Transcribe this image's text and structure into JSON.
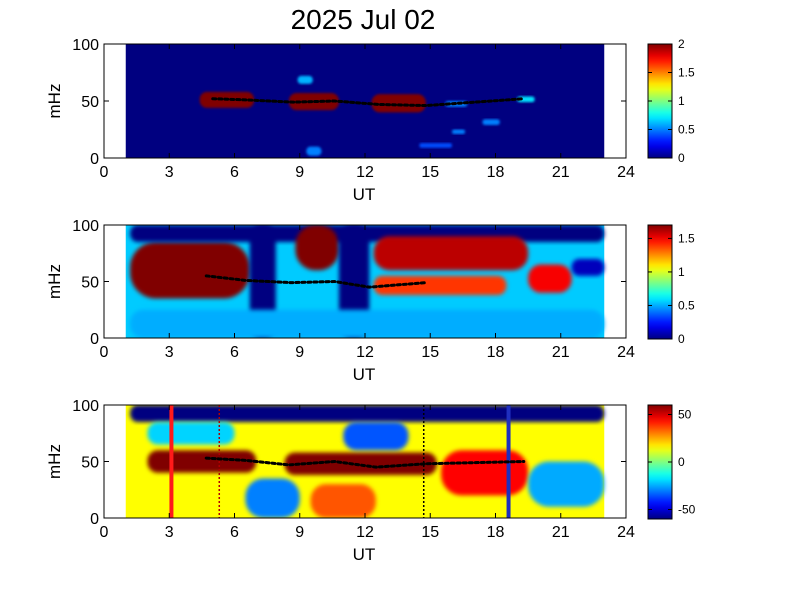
{
  "chart_data": {
    "title": "2025 Jul 02",
    "panels": [
      {
        "type": "heatmap",
        "id": "power",
        "xlabel": "UT",
        "ylabel": "mHz",
        "xlim": [
          0,
          24
        ],
        "ylim": [
          0,
          100
        ],
        "x_ticks": [
          "0",
          "3",
          "6",
          "9",
          "12",
          "15",
          "18",
          "21",
          "24"
        ],
        "y_ticks": [
          "0",
          "50",
          "100"
        ],
        "data_range_ut": [
          1,
          23
        ],
        "colorbar": {
          "min": 0,
          "max": 2,
          "ticks": [
            "0",
            "0.5",
            "1",
            "1.5",
            "2"
          ],
          "colormap": "jet"
        },
        "background_level": 0.0,
        "features": [
          {
            "ut": [
              4.4,
              6.9
            ],
            "mhz": [
              44,
              58
            ],
            "level": 2.0
          },
          {
            "ut": [
              8.5,
              10.8
            ],
            "mhz": [
              42,
              57
            ],
            "level": 2.0
          },
          {
            "ut": [
              12.3,
              14.8
            ],
            "mhz": [
              40,
              56
            ],
            "level": 2.0
          },
          {
            "ut": [
              8.9,
              9.6
            ],
            "mhz": [
              65,
              72
            ],
            "level": 0.6
          },
          {
            "ut": [
              9.3,
              10.0
            ],
            "mhz": [
              2,
              10
            ],
            "level": 0.5
          },
          {
            "ut": [
              15.7,
              16.7
            ],
            "mhz": [
              45,
              50
            ],
            "level": 0.5
          },
          {
            "ut": [
              16.0,
              16.6
            ],
            "mhz": [
              21,
              25
            ],
            "level": 0.5
          },
          {
            "ut": [
              14.5,
              16.0
            ],
            "mhz": [
              9,
              13
            ],
            "level": 0.4
          },
          {
            "ut": [
              17.4,
              18.2
            ],
            "mhz": [
              29,
              34
            ],
            "level": 0.5
          },
          {
            "ut": [
              19.0,
              19.8
            ],
            "mhz": [
              49,
              54
            ],
            "level": 0.7
          }
        ],
        "peak_track": [
          [
            5.0,
            52
          ],
          [
            6.5,
            51
          ],
          [
            8.7,
            49
          ],
          [
            10.6,
            50
          ],
          [
            12.6,
            47
          ],
          [
            14.8,
            46
          ],
          [
            19.3,
            52
          ]
        ]
      },
      {
        "type": "heatmap",
        "id": "coherence",
        "xlabel": "UT",
        "ylabel": "mHz",
        "xlim": [
          0,
          24
        ],
        "ylim": [
          0,
          100
        ],
        "x_ticks": [
          "0",
          "3",
          "6",
          "9",
          "12",
          "15",
          "18",
          "21",
          "24"
        ],
        "y_ticks": [
          "0",
          "50",
          "100"
        ],
        "data_range_ut": [
          1,
          23
        ],
        "colorbar": {
          "min": 0,
          "max": 1.7,
          "ticks": [
            "0",
            "0.5",
            "1",
            "1.5"
          ],
          "colormap": "jet"
        },
        "background_level": 0.55,
        "features": [
          {
            "ut": [
              1.2,
              6.7
            ],
            "mhz": [
              35,
              85
            ],
            "level": 1.7
          },
          {
            "ut": [
              1.2,
              23
            ],
            "mhz": [
              85,
              100
            ],
            "level": 0.0
          },
          {
            "ut": [
              6.7,
              7.9
            ],
            "mhz": [
              0,
              100
            ],
            "level": 0.0
          },
          {
            "ut": [
              8.8,
              10.8
            ],
            "mhz": [
              60,
              100
            ],
            "level": 1.7
          },
          {
            "ut": [
              10.8,
              12.2
            ],
            "mhz": [
              0,
              100
            ],
            "level": 0.0
          },
          {
            "ut": [
              12.4,
              19.5
            ],
            "mhz": [
              60,
              90
            ],
            "level": 1.6
          },
          {
            "ut": [
              12.4,
              18.5
            ],
            "mhz": [
              38,
              55
            ],
            "level": 1.4
          },
          {
            "ut": [
              19.5,
              21.5
            ],
            "mhz": [
              40,
              65
            ],
            "level": 1.5
          },
          {
            "ut": [
              1.2,
              23
            ],
            "mhz": [
              0,
              25
            ],
            "level": 0.5
          },
          {
            "ut": [
              21.5,
              23
            ],
            "mhz": [
              55,
              70
            ],
            "level": 0.1
          }
        ],
        "peak_track": [
          [
            4.7,
            55
          ],
          [
            6.5,
            51
          ],
          [
            8.6,
            49
          ],
          [
            10.6,
            50
          ],
          [
            12.2,
            45
          ],
          [
            14.8,
            49
          ]
        ]
      },
      {
        "type": "heatmap",
        "id": "phase",
        "xlabel": "UT",
        "ylabel": "mHz",
        "xlim": [
          0,
          24
        ],
        "ylim": [
          0,
          100
        ],
        "x_ticks": [
          "0",
          "3",
          "6",
          "9",
          "12",
          "15",
          "18",
          "21",
          "24"
        ],
        "y_ticks": [
          "0",
          "50",
          "100"
        ],
        "data_range_ut": [
          1,
          23
        ],
        "colorbar": {
          "min": -60,
          "max": 60,
          "ticks": [
            "-50",
            "0",
            "50"
          ],
          "colormap": "jet"
        },
        "background_level": 15,
        "features": [
          {
            "ut": [
              1.2,
              23
            ],
            "mhz": [
              85,
              100
            ],
            "level": -60
          },
          {
            "ut": [
              2.0,
              7.0
            ],
            "mhz": [
              40,
              60
            ],
            "level": 60
          },
          {
            "ut": [
              8.3,
              15.3
            ],
            "mhz": [
              38,
              58
            ],
            "level": 60
          },
          {
            "ut": [
              6.5,
              9.0
            ],
            "mhz": [
              0,
              35
            ],
            "level": -30
          },
          {
            "ut": [
              9.5,
              12.5
            ],
            "mhz": [
              0,
              30
            ],
            "level": 35
          },
          {
            "ut": [
              15.5,
              19.5
            ],
            "mhz": [
              20,
              60
            ],
            "level": 45
          },
          {
            "ut": [
              19.5,
              23
            ],
            "mhz": [
              10,
              50
            ],
            "level": -25
          },
          {
            "ut": [
              11.0,
              14.0
            ],
            "mhz": [
              60,
              85
            ],
            "level": -35
          },
          {
            "ut": [
              2.0,
              6.0
            ],
            "mhz": [
              65,
              85
            ],
            "level": -20
          }
        ],
        "peak_track": [
          [
            4.7,
            53
          ],
          [
            6.5,
            51
          ],
          [
            8.5,
            47
          ],
          [
            10.6,
            50
          ],
          [
            12.5,
            45
          ],
          [
            14.8,
            48
          ],
          [
            19.3,
            50
          ]
        ],
        "markers": [
          {
            "ut": 3.1,
            "color": "#ff1a1a",
            "style": "solid"
          },
          {
            "ut": 5.3,
            "color": "#b00000",
            "style": "dotted"
          },
          {
            "ut": 14.7,
            "color": "#000000",
            "style": "dotted"
          },
          {
            "ut": 18.6,
            "color": "#1f2fbf",
            "style": "solid"
          }
        ]
      }
    ]
  }
}
